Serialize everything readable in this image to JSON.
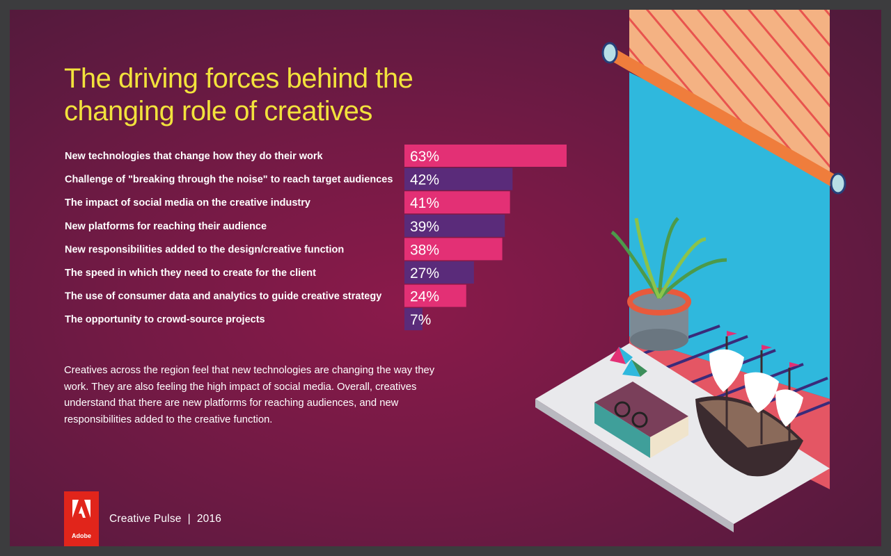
{
  "title": "The driving forces behind the changing role of creatives",
  "chart_data": {
    "type": "bar",
    "orientation": "horizontal",
    "categories": [
      "New technologies that change how they do their work",
      "Challenge of \"breaking through the noise\" to reach target audiences",
      "The impact of social media on the creative industry",
      "New platforms for reaching their audience",
      "New responsibilities added to the design/creative function",
      "The speed in which they need to create for the client",
      "The use of consumer data and analytics to guide creative strategy",
      "The opportunity to crowd-source projects"
    ],
    "values": [
      63,
      42,
      41,
      39,
      38,
      27,
      24,
      7
    ],
    "value_labels": [
      "63%",
      "42%",
      "41%",
      "39%",
      "38%",
      "27%",
      "24%",
      "7%"
    ],
    "bar_colors": [
      "#e33075",
      "#5a2b7a"
    ],
    "title": "The driving forces behind the changing role of creatives",
    "xlabel": "",
    "ylabel": "",
    "xlim": [
      0,
      63
    ],
    "grid": false
  },
  "body_text": "Creatives across the region feel that new technologies are changing the way they work. They are also feeling the high impact of social media. Overall, creatives understand that there are new platforms for reaching audiences, and new responsibilities added to the creative function.",
  "footer": {
    "logo_text": "Adobe",
    "label": "Creative Pulse  |  2016"
  },
  "colors": {
    "title": "#f2e23c",
    "background": "#6e1a44",
    "bar_pink": "#e33075",
    "bar_purple": "#5a2b7a",
    "adobe_red": "#e1251b"
  }
}
